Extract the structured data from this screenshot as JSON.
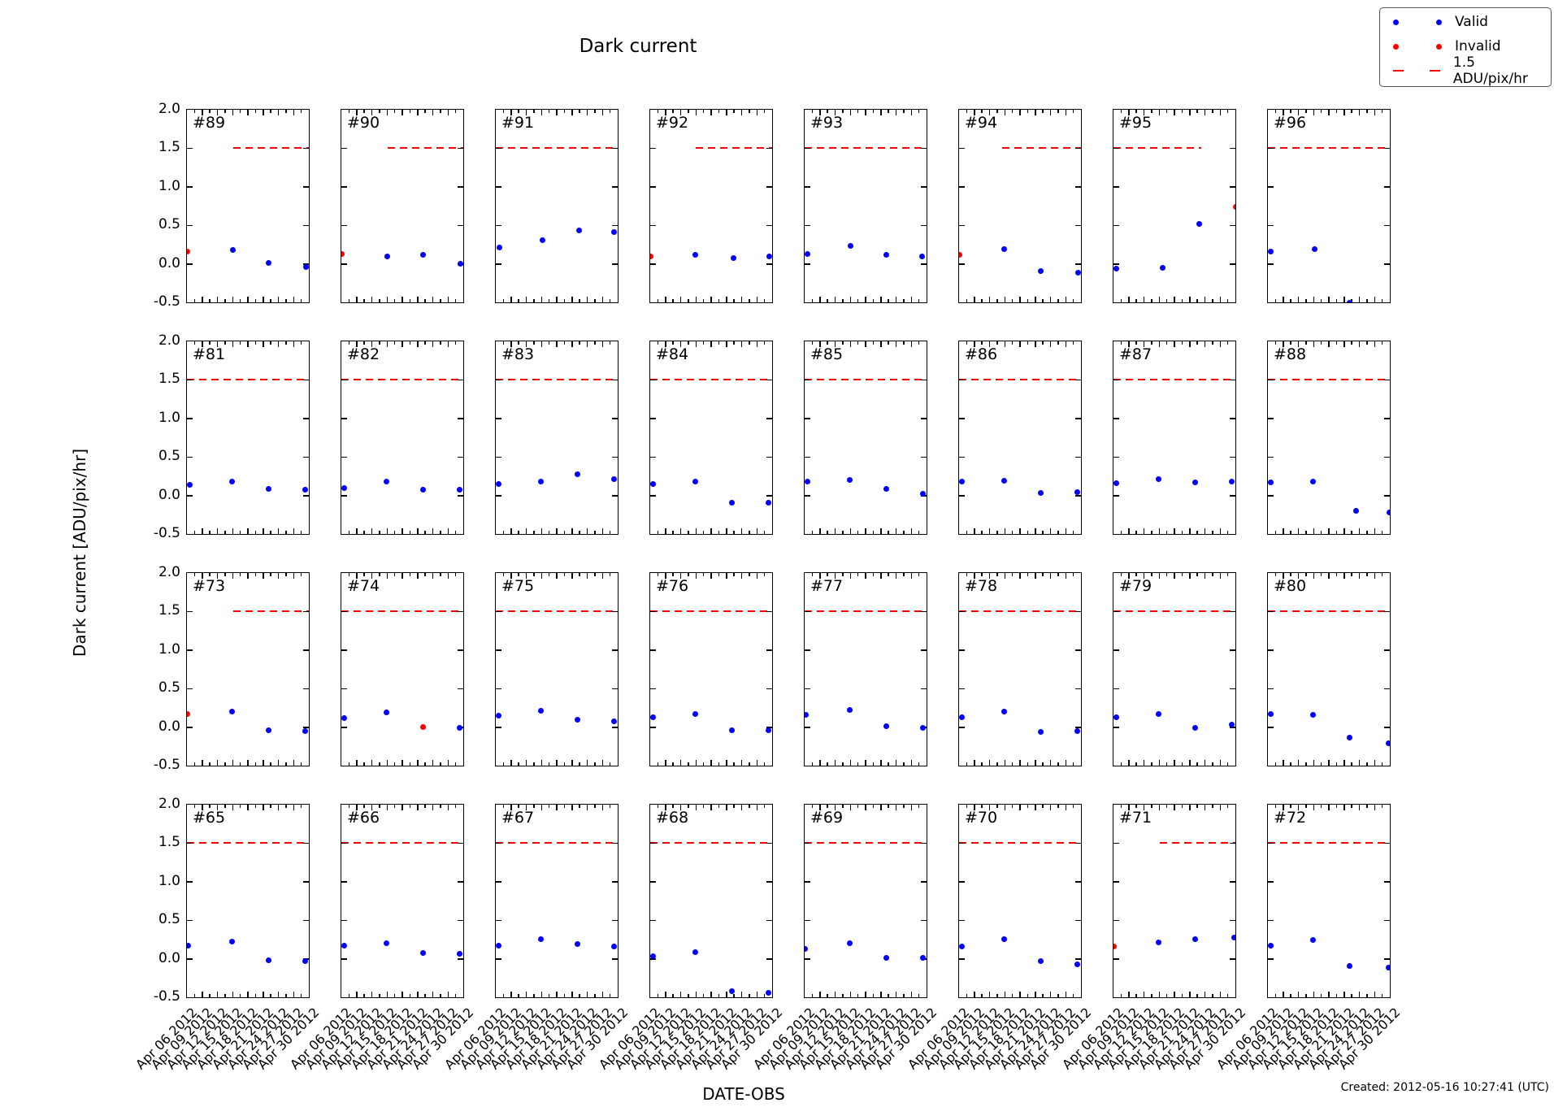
{
  "title": "Dark current",
  "ylabel": "Dark current [ADU/pix/hr]",
  "xlabel": "DATE-OBS",
  "created": "Created: 2012-05-16 10:27:41 (UTC)",
  "legend": {
    "valid_label": "Valid",
    "invalid_label": "Invalid",
    "threshold_label": "1.5 ADU/pix/hr"
  },
  "colors": {
    "valid": "#0000ff",
    "invalid": "#ff0000",
    "threshold": "#ff0000",
    "frame": "#000000"
  },
  "chart_data": {
    "type": "scatter",
    "grid": {
      "rows": 4,
      "cols": 8
    },
    "ylim": [
      -0.5,
      2.0
    ],
    "ytick_labels": [
      "2.0",
      "1.5",
      "1.0",
      "0.5",
      "0.0",
      "-0.5"
    ],
    "yticks": [
      2.0,
      1.5,
      1.0,
      0.5,
      0.0,
      -0.5
    ],
    "xtick_labels": [
      "Apr 06 2012",
      "Apr 09 2012",
      "Apr 12 2012",
      "Apr 15 2012",
      "Apr 18 2012",
      "Apr 21 2012",
      "Apr 24 2012",
      "Apr 27 2012",
      "Apr 30 2012"
    ],
    "x_points_dates_approx": [
      "Apr 06",
      "Apr 15",
      "Apr 22",
      "Apr 29"
    ],
    "threshold_value": 1.5,
    "legend_position": "upper right",
    "grid_lines": false,
    "subplots": [
      {
        "id": "#89",
        "dash": [
          0.38,
          1.0
        ],
        "points": [
          {
            "x": 0.005,
            "y": 0.16,
            "valid": false
          },
          {
            "x": 0.375,
            "y": 0.18,
            "valid": true
          },
          {
            "x": 0.67,
            "y": 0.01,
            "valid": true
          },
          {
            "x": 0.975,
            "y": -0.04,
            "valid": true
          }
        ]
      },
      {
        "id": "#90",
        "dash": [
          0.38,
          1.0
        ],
        "points": [
          {
            "x": 0.005,
            "y": 0.13,
            "valid": false
          },
          {
            "x": 0.375,
            "y": 0.1,
            "valid": true
          },
          {
            "x": 0.67,
            "y": 0.12,
            "valid": true
          },
          {
            "x": 0.975,
            "y": 0.0,
            "valid": true
          }
        ]
      },
      {
        "id": "#91",
        "dash": [
          0.0,
          1.0
        ],
        "points": [
          {
            "x": 0.03,
            "y": 0.21,
            "valid": true
          },
          {
            "x": 0.38,
            "y": 0.31,
            "valid": true
          },
          {
            "x": 0.68,
            "y": 0.43,
            "valid": true
          },
          {
            "x": 0.97,
            "y": 0.41,
            "valid": true
          }
        ]
      },
      {
        "id": "#92",
        "dash": [
          0.37,
          1.0
        ],
        "points": [
          {
            "x": 0.005,
            "y": 0.1,
            "valid": false
          },
          {
            "x": 0.37,
            "y": 0.12,
            "valid": true
          },
          {
            "x": 0.68,
            "y": 0.08,
            "valid": true
          },
          {
            "x": 0.975,
            "y": 0.1,
            "valid": true
          }
        ]
      },
      {
        "id": "#93",
        "dash": [
          0.0,
          1.0
        ],
        "points": [
          {
            "x": 0.02,
            "y": 0.13,
            "valid": true
          },
          {
            "x": 0.375,
            "y": 0.23,
            "valid": true
          },
          {
            "x": 0.67,
            "y": 0.12,
            "valid": true
          },
          {
            "x": 0.96,
            "y": 0.1,
            "valid": true
          }
        ]
      },
      {
        "id": "#94",
        "dash": [
          0.35,
          1.0
        ],
        "points": [
          {
            "x": 0.005,
            "y": 0.12,
            "valid": false
          },
          {
            "x": 0.37,
            "y": 0.19,
            "valid": true
          },
          {
            "x": 0.67,
            "y": -0.09,
            "valid": true
          },
          {
            "x": 0.975,
            "y": -0.11,
            "valid": true
          }
        ]
      },
      {
        "id": "#95",
        "dash": [
          0.0,
          0.72
        ],
        "points": [
          {
            "x": 0.02,
            "y": -0.06,
            "valid": true
          },
          {
            "x": 0.4,
            "y": -0.05,
            "valid": true
          },
          {
            "x": 0.7,
            "y": 0.52,
            "valid": true
          },
          {
            "x": 1.0,
            "y": 0.74,
            "valid": false
          }
        ]
      },
      {
        "id": "#96",
        "dash": [
          0.0,
          1.0
        ],
        "points": [
          {
            "x": 0.02,
            "y": 0.16,
            "valid": true
          },
          {
            "x": 0.38,
            "y": 0.19,
            "valid": true
          },
          {
            "x": 0.67,
            "y": -0.5,
            "valid": true
          }
        ]
      },
      {
        "id": "#81",
        "dash": [
          0.0,
          1.0
        ],
        "points": [
          {
            "x": 0.02,
            "y": 0.14,
            "valid": true
          },
          {
            "x": 0.37,
            "y": 0.18,
            "valid": true
          },
          {
            "x": 0.67,
            "y": 0.09,
            "valid": true
          },
          {
            "x": 0.97,
            "y": 0.07,
            "valid": true
          }
        ]
      },
      {
        "id": "#82",
        "dash": [
          0.0,
          1.0
        ],
        "points": [
          {
            "x": 0.02,
            "y": 0.1,
            "valid": true
          },
          {
            "x": 0.37,
            "y": 0.18,
            "valid": true
          },
          {
            "x": 0.67,
            "y": 0.07,
            "valid": true
          },
          {
            "x": 0.97,
            "y": 0.08,
            "valid": true
          }
        ]
      },
      {
        "id": "#83",
        "dash": [
          0.0,
          1.0
        ],
        "points": [
          {
            "x": 0.02,
            "y": 0.15,
            "valid": true
          },
          {
            "x": 0.37,
            "y": 0.18,
            "valid": true
          },
          {
            "x": 0.67,
            "y": 0.28,
            "valid": true
          },
          {
            "x": 0.97,
            "y": 0.21,
            "valid": true
          }
        ]
      },
      {
        "id": "#84",
        "dash": [
          0.0,
          1.0
        ],
        "points": [
          {
            "x": 0.02,
            "y": 0.15,
            "valid": true
          },
          {
            "x": 0.37,
            "y": 0.18,
            "valid": true
          },
          {
            "x": 0.67,
            "y": -0.09,
            "valid": true
          },
          {
            "x": 0.97,
            "y": -0.09,
            "valid": true
          }
        ]
      },
      {
        "id": "#85",
        "dash": [
          0.0,
          1.0
        ],
        "points": [
          {
            "x": 0.02,
            "y": 0.18,
            "valid": true
          },
          {
            "x": 0.37,
            "y": 0.2,
            "valid": true
          },
          {
            "x": 0.67,
            "y": 0.09,
            "valid": true
          },
          {
            "x": 0.97,
            "y": 0.02,
            "valid": true
          }
        ]
      },
      {
        "id": "#86",
        "dash": [
          0.0,
          1.0
        ],
        "points": [
          {
            "x": 0.02,
            "y": 0.18,
            "valid": true
          },
          {
            "x": 0.37,
            "y": 0.19,
            "valid": true
          },
          {
            "x": 0.67,
            "y": 0.03,
            "valid": true
          },
          {
            "x": 0.97,
            "y": 0.04,
            "valid": true
          }
        ]
      },
      {
        "id": "#87",
        "dash": [
          0.0,
          1.0
        ],
        "points": [
          {
            "x": 0.02,
            "y": 0.16,
            "valid": true
          },
          {
            "x": 0.37,
            "y": 0.21,
            "valid": true
          },
          {
            "x": 0.67,
            "y": 0.17,
            "valid": true
          },
          {
            "x": 0.97,
            "y": 0.18,
            "valid": true
          }
        ]
      },
      {
        "id": "#88",
        "dash": [
          0.0,
          1.0
        ],
        "points": [
          {
            "x": 0.02,
            "y": 0.17,
            "valid": true
          },
          {
            "x": 0.37,
            "y": 0.18,
            "valid": true
          },
          {
            "x": 0.72,
            "y": -0.2,
            "valid": true
          },
          {
            "x": 0.995,
            "y": -0.22,
            "valid": true
          }
        ]
      },
      {
        "id": "#73",
        "dash": [
          0.38,
          1.0
        ],
        "points": [
          {
            "x": 0.005,
            "y": 0.17,
            "valid": false
          },
          {
            "x": 0.37,
            "y": 0.2,
            "valid": true
          },
          {
            "x": 0.67,
            "y": -0.04,
            "valid": true
          },
          {
            "x": 0.97,
            "y": -0.05,
            "valid": true
          }
        ]
      },
      {
        "id": "#74",
        "dash": [
          0.0,
          1.0
        ],
        "points": [
          {
            "x": 0.02,
            "y": 0.12,
            "valid": true
          },
          {
            "x": 0.37,
            "y": 0.19,
            "valid": true
          },
          {
            "x": 0.67,
            "y": 0.0,
            "valid": false
          },
          {
            "x": 0.97,
            "y": -0.01,
            "valid": true
          }
        ]
      },
      {
        "id": "#75",
        "dash": [
          0.0,
          1.0
        ],
        "points": [
          {
            "x": 0.02,
            "y": 0.15,
            "valid": true
          },
          {
            "x": 0.37,
            "y": 0.21,
            "valid": true
          },
          {
            "x": 0.67,
            "y": 0.1,
            "valid": true
          },
          {
            "x": 0.97,
            "y": 0.08,
            "valid": true
          }
        ]
      },
      {
        "id": "#76",
        "dash": [
          0.0,
          1.0
        ],
        "points": [
          {
            "x": 0.02,
            "y": 0.13,
            "valid": true
          },
          {
            "x": 0.37,
            "y": 0.17,
            "valid": true
          },
          {
            "x": 0.67,
            "y": -0.04,
            "valid": true
          },
          {
            "x": 0.97,
            "y": -0.04,
            "valid": true
          }
        ]
      },
      {
        "id": "#77",
        "dash": [
          0.0,
          1.0
        ],
        "points": [
          {
            "x": 0.01,
            "y": 0.16,
            "valid": true
          },
          {
            "x": 0.37,
            "y": 0.22,
            "valid": true
          },
          {
            "x": 0.67,
            "y": 0.01,
            "valid": true
          },
          {
            "x": 0.97,
            "y": -0.01,
            "valid": true
          }
        ]
      },
      {
        "id": "#78",
        "dash": [
          0.0,
          1.0
        ],
        "points": [
          {
            "x": 0.02,
            "y": 0.13,
            "valid": true
          },
          {
            "x": 0.37,
            "y": 0.2,
            "valid": true
          },
          {
            "x": 0.67,
            "y": -0.06,
            "valid": true
          },
          {
            "x": 0.97,
            "y": -0.05,
            "valid": true
          }
        ]
      },
      {
        "id": "#79",
        "dash": [
          0.0,
          1.0
        ],
        "points": [
          {
            "x": 0.02,
            "y": 0.13,
            "valid": true
          },
          {
            "x": 0.37,
            "y": 0.17,
            "valid": true
          },
          {
            "x": 0.67,
            "y": -0.01,
            "valid": true
          },
          {
            "x": 0.97,
            "y": 0.03,
            "valid": true
          }
        ]
      },
      {
        "id": "#80",
        "dash": [
          0.0,
          1.0
        ],
        "points": [
          {
            "x": 0.02,
            "y": 0.17,
            "valid": true
          },
          {
            "x": 0.37,
            "y": 0.16,
            "valid": true
          },
          {
            "x": 0.67,
            "y": -0.14,
            "valid": true
          },
          {
            "x": 0.99,
            "y": -0.21,
            "valid": true
          }
        ]
      },
      {
        "id": "#65",
        "dash": [
          0.0,
          1.0
        ],
        "points": [
          {
            "x": 0.01,
            "y": 0.17,
            "valid": true
          },
          {
            "x": 0.37,
            "y": 0.22,
            "valid": true
          },
          {
            "x": 0.67,
            "y": -0.02,
            "valid": true
          },
          {
            "x": 0.97,
            "y": -0.03,
            "valid": true
          }
        ]
      },
      {
        "id": "#66",
        "dash": [
          0.0,
          1.0
        ],
        "points": [
          {
            "x": 0.02,
            "y": 0.17,
            "valid": true
          },
          {
            "x": 0.37,
            "y": 0.2,
            "valid": true
          },
          {
            "x": 0.67,
            "y": 0.07,
            "valid": true
          },
          {
            "x": 0.97,
            "y": 0.06,
            "valid": true
          }
        ]
      },
      {
        "id": "#67",
        "dash": [
          0.0,
          1.0
        ],
        "points": [
          {
            "x": 0.02,
            "y": 0.17,
            "valid": true
          },
          {
            "x": 0.37,
            "y": 0.25,
            "valid": true
          },
          {
            "x": 0.67,
            "y": 0.19,
            "valid": true
          },
          {
            "x": 0.97,
            "y": 0.16,
            "valid": true
          }
        ]
      },
      {
        "id": "#68",
        "dash": [
          0.0,
          1.0
        ],
        "points": [
          {
            "x": 0.02,
            "y": 0.03,
            "valid": true
          },
          {
            "x": 0.37,
            "y": 0.09,
            "valid": true
          },
          {
            "x": 0.67,
            "y": -0.42,
            "valid": true
          },
          {
            "x": 0.97,
            "y": -0.44,
            "valid": true
          }
        ]
      },
      {
        "id": "#69",
        "dash": [
          0.0,
          1.0
        ],
        "points": [
          {
            "x": 0.005,
            "y": 0.13,
            "valid": true
          },
          {
            "x": 0.37,
            "y": 0.2,
            "valid": true
          },
          {
            "x": 0.67,
            "y": 0.01,
            "valid": true
          },
          {
            "x": 0.97,
            "y": 0.01,
            "valid": true
          }
        ]
      },
      {
        "id": "#70",
        "dash": [
          0.0,
          1.0
        ],
        "points": [
          {
            "x": 0.02,
            "y": 0.16,
            "valid": true
          },
          {
            "x": 0.37,
            "y": 0.25,
            "valid": true
          },
          {
            "x": 0.67,
            "y": -0.03,
            "valid": true
          },
          {
            "x": 0.97,
            "y": -0.07,
            "valid": true
          }
        ]
      },
      {
        "id": "#71",
        "dash": [
          0.38,
          1.0
        ],
        "points": [
          {
            "x": 0.005,
            "y": 0.16,
            "valid": false
          },
          {
            "x": 0.37,
            "y": 0.21,
            "valid": true
          },
          {
            "x": 0.67,
            "y": 0.25,
            "valid": true
          },
          {
            "x": 0.99,
            "y": 0.28,
            "valid": true
          }
        ]
      },
      {
        "id": "#72",
        "dash": [
          0.0,
          1.0
        ],
        "points": [
          {
            "x": 0.02,
            "y": 0.17,
            "valid": true
          },
          {
            "x": 0.37,
            "y": 0.24,
            "valid": true
          },
          {
            "x": 0.67,
            "y": -0.09,
            "valid": true
          },
          {
            "x": 0.99,
            "y": -0.11,
            "valid": true
          }
        ]
      }
    ]
  }
}
